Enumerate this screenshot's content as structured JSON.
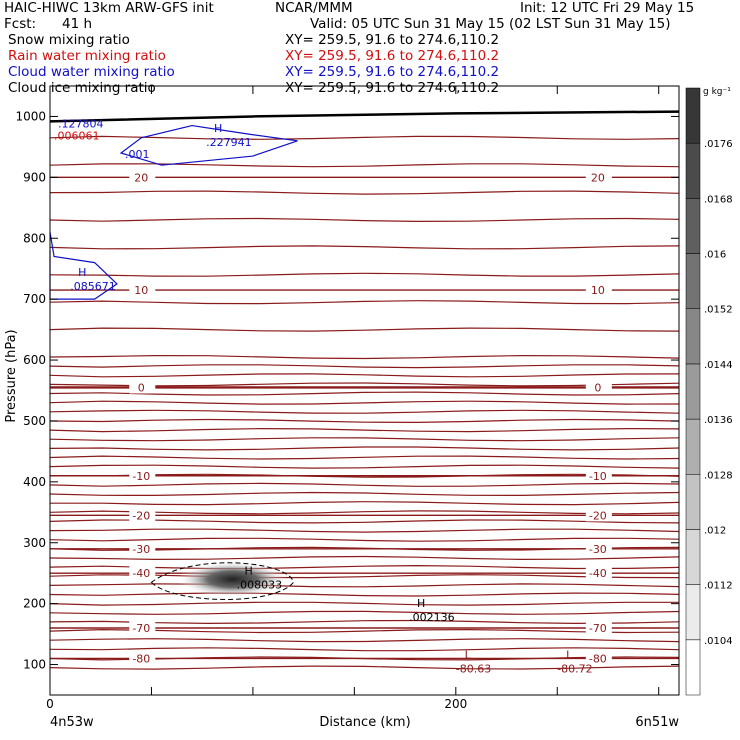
{
  "header": {
    "left_title": "HAIC-HIWC 13km ARW-GFS init",
    "center_title": "NCAR/MMM",
    "init_text": "Init: 12 UTC Fri 29 May 15",
    "fcst_label": "Fcst:",
    "fcst_value": "41 h",
    "valid_text": "Valid: 05 UTC Sun 31 May 15 (02 LST Sun 31 May 15)",
    "fields": [
      {
        "name": "Snow mixing ratio",
        "xy": "XY= 259.5, 91.6 to 274.6,110.2",
        "color": "#000000"
      },
      {
        "name": "Rain water mixing ratio",
        "xy": "XY= 259.5, 91.6 to 274.6,110.2",
        "color": "#d01010"
      },
      {
        "name": "Cloud water mixing ratio",
        "xy": "XY= 259.5, 91.6 to 274.6,110.2",
        "color": "#1010c8"
      },
      {
        "name": "Cloud ice mixing ratio",
        "xy": "XY= 259.5, 91.6 to 274.6,110.2",
        "color": "#000000"
      }
    ]
  },
  "chart_data": {
    "type": "cross-section",
    "xlabel": "Distance (km)",
    "ylabel": "Pressure (hPa)",
    "xlim": [
      0,
      310
    ],
    "ylim": [
      1050,
      50
    ],
    "x_ticks": [
      0,
      200
    ],
    "y_ticks": [
      100,
      200,
      300,
      400,
      500,
      600,
      700,
      800,
      900,
      1000
    ],
    "left_endpoint": "4n53w",
    "right_endpoint": "6n51w",
    "colorbar": {
      "unit": "g kg⁻¹",
      "ticks": [
        ".0104",
        ".0112",
        ".012",
        ".0128",
        ".0136",
        ".0144",
        ".0152",
        ".016",
        ".0168",
        ".0176"
      ],
      "range": [
        0.01,
        0.018
      ]
    },
    "temperature_contours": [
      {
        "label": "-80",
        "p": 110
      },
      {
        "label": "-70",
        "p": 160
      },
      {
        "label": "-40",
        "p": 250
      },
      {
        "label": "-30",
        "p": 290
      },
      {
        "label": "-20",
        "p": 345
      },
      {
        "label": "-10",
        "p": 410
      },
      {
        "label": "0",
        "p": 555
      },
      {
        "label": "10",
        "p": 715
      },
      {
        "label": "20",
        "p": 900
      }
    ],
    "extrema": [
      {
        "type": "L",
        "value": "-80.63",
        "x": 198,
        "p": 100,
        "color": "#8b1a1a"
      },
      {
        "type": "L",
        "value": "-80.72",
        "x": 248,
        "p": 100,
        "color": "#8b1a1a"
      },
      {
        "type": "H",
        "value": ".002136",
        "x": 175,
        "p": 185,
        "color": "#000000"
      },
      {
        "type": "H",
        "value": ".008033",
        "x": 90,
        "p": 238,
        "color": "#000000"
      },
      {
        "type": "H",
        "value": ".085671",
        "x": 8,
        "p": 728,
        "color": "#1010c8"
      },
      {
        "type": "H",
        "value": ".227941",
        "x": 75,
        "p": 965,
        "color": "#1010c8"
      },
      {
        "type": "",
        "value": ".127804",
        "x": 2,
        "p": 995,
        "color": "#1010c8"
      },
      {
        "type": "",
        "value": ".006061",
        "x": 0,
        "p": 975,
        "color": "#d01010"
      },
      {
        "type": "",
        "value": ".001",
        "x": 35,
        "p": 945,
        "color": "#1010c8"
      }
    ]
  }
}
